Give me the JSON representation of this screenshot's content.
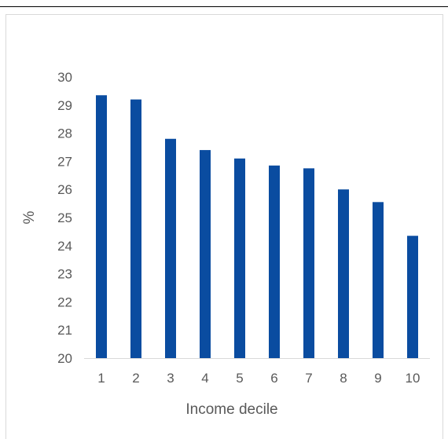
{
  "chart_data": {
    "type": "bar",
    "title": "",
    "xlabel": "Income decile",
    "ylabel": "%",
    "categories": [
      "1",
      "2",
      "3",
      "4",
      "5",
      "6",
      "7",
      "8",
      "9",
      "10"
    ],
    "values": [
      29.35,
      29.2,
      27.8,
      27.4,
      27.1,
      26.85,
      26.75,
      26.0,
      25.55,
      24.35
    ],
    "ylim": [
      20,
      30
    ],
    "yticks": [
      "20",
      "21",
      "22",
      "23",
      "24",
      "25",
      "26",
      "27",
      "28",
      "29",
      "30"
    ],
    "grid": false,
    "legend": "none",
    "bar_color": "#0a4ca0"
  }
}
